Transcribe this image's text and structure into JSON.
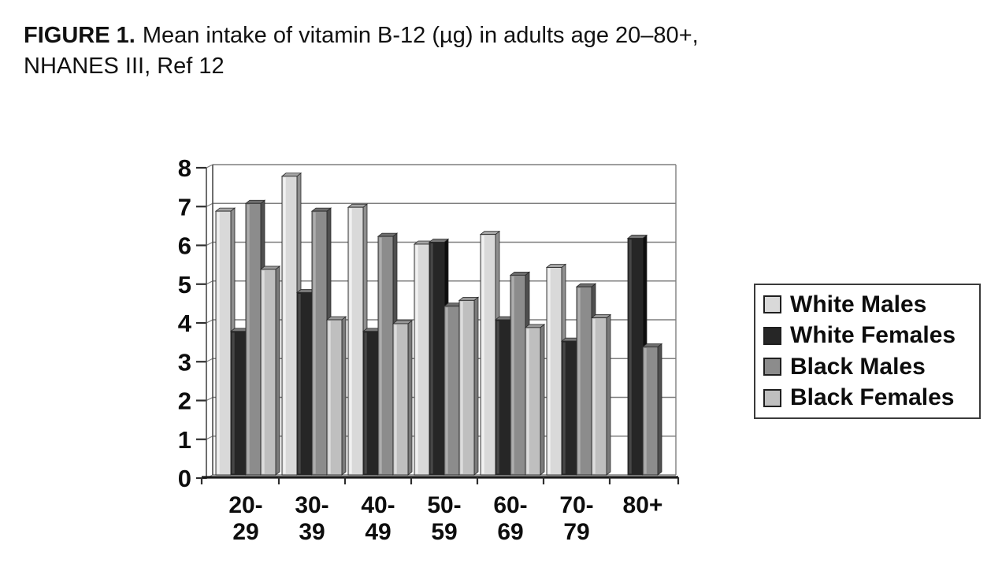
{
  "title": {
    "figure_label": "FIGURE 1.",
    "line1": "Mean intake of vitamin B-12 (µg) in adults age 20–80+,",
    "line2": "NHANES III, Ref 12"
  },
  "chart_data": {
    "type": "bar",
    "title": "FIGURE 1. Mean intake of vitamin B-12 (µg) in adults age 20–80+, NHANES III, Ref 12",
    "categories": [
      "20-29",
      "30-39",
      "40-49",
      "50-59",
      "60-69",
      "70-79",
      "80+"
    ],
    "series": [
      {
        "name": "White Males",
        "color": "#d9d9d9",
        "side": "#8f8f8f",
        "top": "#a6a6a6",
        "highlight": "#f4f4f4",
        "values": [
          6.8,
          7.7,
          6.9,
          5.95,
          6.2,
          5.35,
          0
        ]
      },
      {
        "name": "White Females",
        "color": "#262626",
        "side": "#0d0d0d",
        "top": "#787878",
        "highlight": "#4d4d4d",
        "values": [
          3.7,
          4.7,
          3.7,
          6.0,
          4.0,
          3.45,
          6.1
        ]
      },
      {
        "name": "Black Males",
        "color": "#8c8c8c",
        "side": "#4f4f4f",
        "top": "#6e6e6e",
        "highlight": "#b3b3b3",
        "values": [
          7.0,
          6.8,
          6.15,
          4.35,
          5.15,
          4.85,
          3.3
        ]
      },
      {
        "name": "Black Females",
        "color": "#bfbfbf",
        "side": "#7a7a7a",
        "top": "#999999",
        "highlight": "#e2e2e2",
        "values": [
          5.3,
          4.0,
          3.9,
          4.5,
          3.8,
          4.05,
          0
        ]
      }
    ],
    "ylim": [
      0,
      8
    ],
    "ytick_step": 1,
    "y_ticks": [
      0,
      1,
      2,
      3,
      4,
      5,
      6,
      7,
      8
    ],
    "grid": true,
    "legend_position": "right",
    "xlabel": "",
    "ylabel": "",
    "axis_color": "#7f7f7f",
    "text_color": "#0d0d0d"
  }
}
